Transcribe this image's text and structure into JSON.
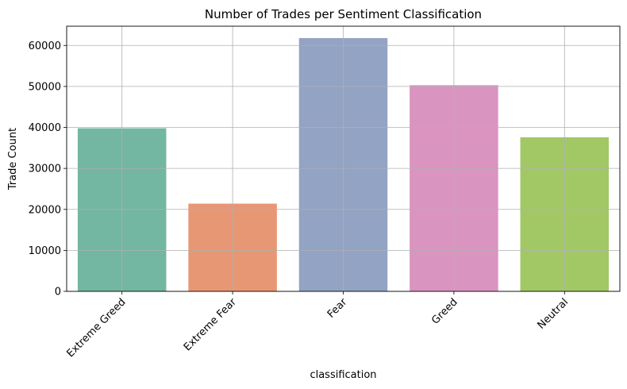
{
  "chart_data": {
    "type": "bar",
    "title": "Number of Trades per Sentiment Classification",
    "xlabel": "classification",
    "ylabel": "Trade Count",
    "categories": [
      "Extreme Greed",
      "Extreme Fear",
      "Fear",
      "Greed",
      "Neutral"
    ],
    "values": [
      39800,
      21400,
      61800,
      50300,
      37600
    ],
    "colors": [
      "#73b6a1",
      "#e89774",
      "#93a3c4",
      "#da94c0",
      "#a2c866"
    ],
    "ylim": [
      0,
      64700
    ],
    "yticks": [
      0,
      10000,
      20000,
      30000,
      40000,
      50000,
      60000
    ],
    "ytick_labels": [
      "0",
      "10000",
      "20000",
      "30000",
      "40000",
      "50000",
      "60000"
    ],
    "grid": true,
    "legend": "none"
  }
}
